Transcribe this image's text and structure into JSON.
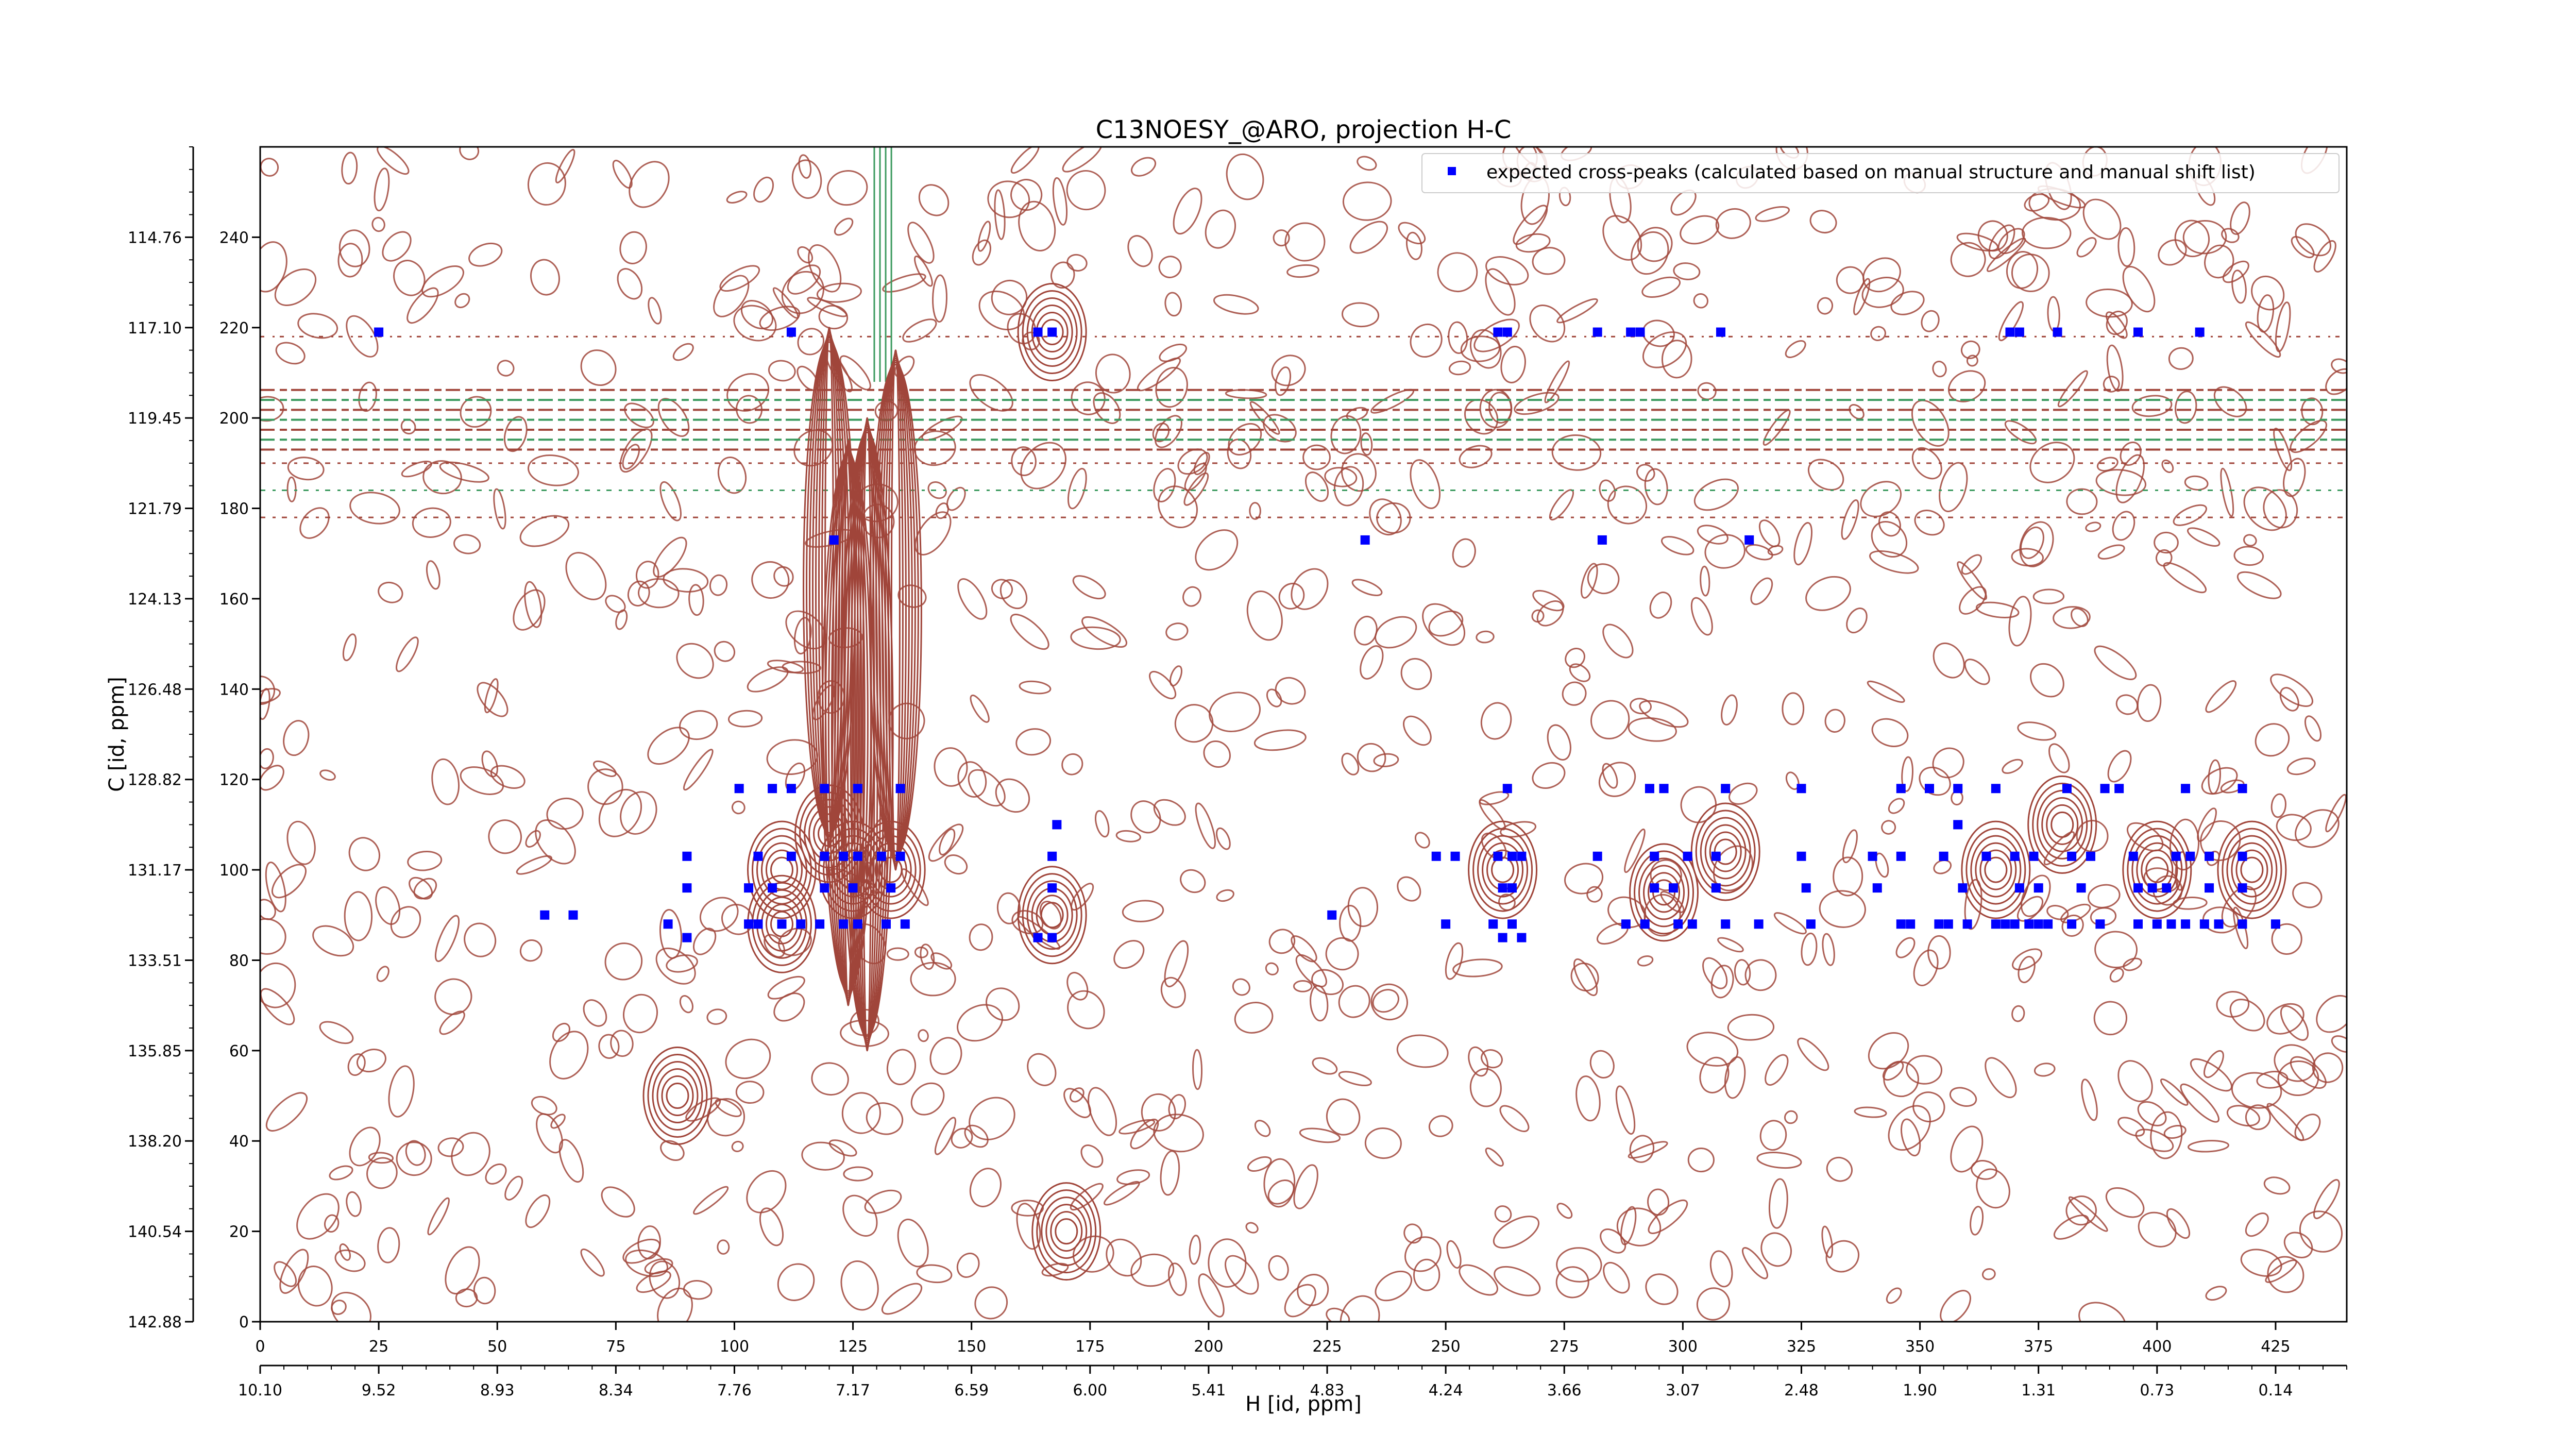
{
  "chart_data": {
    "type": "scatter",
    "title": "C13NOESY_@ARO, projection H-C",
    "xlabel": "H [id, ppm]",
    "ylabel": "C [id, ppm]",
    "xlim": [
      0,
      440
    ],
    "ylim": [
      0,
      260
    ],
    "x_ticks": [
      0,
      25,
      50,
      75,
      100,
      125,
      150,
      175,
      200,
      225,
      250,
      275,
      300,
      325,
      350,
      375,
      400,
      425
    ],
    "x_ppm_ticks": [
      "10.10",
      "9.52",
      "8.93",
      "8.34",
      "7.76",
      "7.17",
      "6.59",
      "6.00",
      "5.41",
      "4.83",
      "4.24",
      "3.66",
      "3.07",
      "2.48",
      "1.90",
      "1.31",
      "0.73",
      "0.14"
    ],
    "y_ticks": [
      0,
      20,
      40,
      60,
      80,
      100,
      120,
      140,
      160,
      180,
      200,
      220,
      240
    ],
    "y_ppm_ticks": [
      "142.88",
      "140.54",
      "138.20",
      "135.85",
      "133.51",
      "131.17",
      "128.82",
      "126.48",
      "124.13",
      "121.79",
      "119.45",
      "117.10",
      "114.76"
    ],
    "legend": {
      "position": "top-right",
      "label": "expected cross-peaks (calculated based on manual structure and manual shift list)",
      "color": "#0000ff"
    },
    "colors": {
      "positive_contour": "#a0453a",
      "negative_contour": "#3c9a5f",
      "points": "#0000ff"
    },
    "series": [
      {
        "name": "expected cross-peaks (calculated based on manual structure and manual shift list)",
        "points": [
          [
            25,
            219
          ],
          [
            112,
            219
          ],
          [
            164,
            219
          ],
          [
            167,
            219
          ],
          [
            261,
            219
          ],
          [
            263,
            219
          ],
          [
            282,
            219
          ],
          [
            289,
            219
          ],
          [
            291,
            219
          ],
          [
            308,
            219
          ],
          [
            369,
            219
          ],
          [
            371,
            219
          ],
          [
            379,
            219
          ],
          [
            396,
            219
          ],
          [
            409,
            219
          ],
          [
            121,
            173
          ],
          [
            233,
            173
          ],
          [
            283,
            173
          ],
          [
            314,
            173
          ],
          [
            101,
            118
          ],
          [
            108,
            118
          ],
          [
            112,
            118
          ],
          [
            119,
            118
          ],
          [
            126,
            118
          ],
          [
            135,
            118
          ],
          [
            168,
            110
          ],
          [
            263,
            118
          ],
          [
            293,
            118
          ],
          [
            296,
            118
          ],
          [
            309,
            118
          ],
          [
            325,
            118
          ],
          [
            346,
            118
          ],
          [
            352,
            118
          ],
          [
            358,
            118
          ],
          [
            358,
            110
          ],
          [
            366,
            118
          ],
          [
            381,
            118
          ],
          [
            389,
            118
          ],
          [
            392,
            118
          ],
          [
            406,
            118
          ],
          [
            418,
            118
          ],
          [
            90,
            103
          ],
          [
            105,
            103
          ],
          [
            112,
            103
          ],
          [
            119,
            103
          ],
          [
            123,
            103
          ],
          [
            126,
            103
          ],
          [
            131,
            103
          ],
          [
            135,
            103
          ],
          [
            167,
            103
          ],
          [
            248,
            103
          ],
          [
            252,
            103
          ],
          [
            261,
            103
          ],
          [
            264,
            103
          ],
          [
            266,
            103
          ],
          [
            282,
            103
          ],
          [
            294,
            103
          ],
          [
            301,
            103
          ],
          [
            307,
            103
          ],
          [
            325,
            103
          ],
          [
            340,
            103
          ],
          [
            346,
            103
          ],
          [
            355,
            103
          ],
          [
            364,
            103
          ],
          [
            370,
            103
          ],
          [
            374,
            103
          ],
          [
            382,
            103
          ],
          [
            386,
            103
          ],
          [
            395,
            103
          ],
          [
            404,
            103
          ],
          [
            407,
            103
          ],
          [
            411,
            103
          ],
          [
            418,
            103
          ],
          [
            90,
            96
          ],
          [
            103,
            96
          ],
          [
            108,
            96
          ],
          [
            119,
            96
          ],
          [
            125,
            96
          ],
          [
            133,
            96
          ],
          [
            167,
            96
          ],
          [
            262,
            96
          ],
          [
            264,
            96
          ],
          [
            294,
            96
          ],
          [
            298,
            96
          ],
          [
            307,
            96
          ],
          [
            326,
            96
          ],
          [
            341,
            96
          ],
          [
            359,
            96
          ],
          [
            371,
            96
          ],
          [
            375,
            96
          ],
          [
            384,
            96
          ],
          [
            396,
            96
          ],
          [
            399,
            96
          ],
          [
            402,
            96
          ],
          [
            411,
            96
          ],
          [
            418,
            96
          ],
          [
            60,
            90
          ],
          [
            66,
            90
          ],
          [
            86,
            88
          ],
          [
            90,
            85
          ],
          [
            103,
            88
          ],
          [
            105,
            88
          ],
          [
            110,
            88
          ],
          [
            114,
            88
          ],
          [
            118,
            88
          ],
          [
            123,
            88
          ],
          [
            126,
            88
          ],
          [
            132,
            88
          ],
          [
            136,
            88
          ],
          [
            164,
            85
          ],
          [
            167,
            85
          ],
          [
            226,
            90
          ],
          [
            250,
            88
          ],
          [
            260,
            88
          ],
          [
            262,
            85
          ],
          [
            264,
            88
          ],
          [
            266,
            85
          ],
          [
            288,
            88
          ],
          [
            292,
            88
          ],
          [
            299,
            88
          ],
          [
            302,
            88
          ],
          [
            309,
            88
          ],
          [
            316,
            88
          ],
          [
            327,
            88
          ],
          [
            346,
            88
          ],
          [
            348,
            88
          ],
          [
            354,
            88
          ],
          [
            356,
            88
          ],
          [
            360,
            88
          ],
          [
            366,
            88
          ],
          [
            368,
            88
          ],
          [
            370,
            88
          ],
          [
            373,
            88
          ],
          [
            375,
            88
          ],
          [
            377,
            88
          ],
          [
            382,
            88
          ],
          [
            388,
            88
          ],
          [
            396,
            88
          ],
          [
            400,
            88
          ],
          [
            403,
            88
          ],
          [
            406,
            88
          ],
          [
            410,
            88
          ],
          [
            413,
            88
          ],
          [
            418,
            88
          ],
          [
            425,
            88
          ]
        ]
      }
    ]
  }
}
